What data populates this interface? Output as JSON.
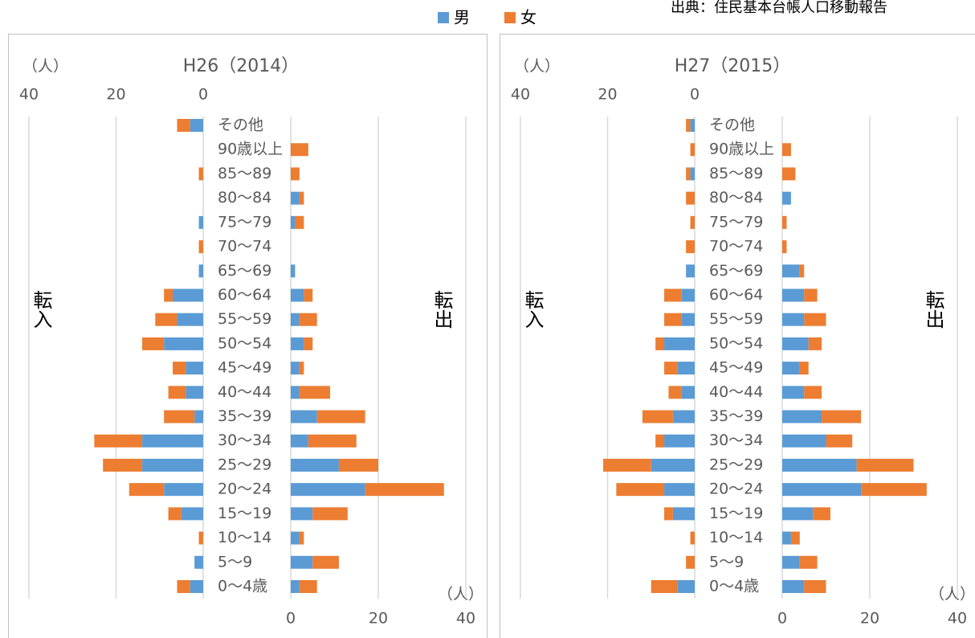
{
  "chart_data": {
    "type": "pyramid",
    "source": "出典：住民基本台帳人口移動報告",
    "legend": [
      {
        "name": "男",
        "color": "#5b9bd5"
      },
      {
        "name": "女",
        "color": "#ed7d31"
      }
    ],
    "charts": [
      {
        "title": "H26（2014）",
        "unit_label": "（人）",
        "in_label": "転入",
        "out_label": "転出",
        "xlim": [
          0,
          40
        ],
        "xticks": [
          0,
          20,
          40
        ],
        "categories": [
          "その他",
          "90歳以上",
          "85～89",
          "80～84",
          "75～79",
          "70～74",
          "65～69",
          "60～64",
          "55～59",
          "50～54",
          "45～49",
          "40～44",
          "35～39",
          "30～34",
          "25～29",
          "20～24",
          "15～19",
          "10～14",
          "5～9",
          "0～4歳"
        ],
        "series": [
          {
            "in": [
              3,
              0,
              0,
              0,
              1,
              0,
              1,
              7,
              6,
              9,
              4,
              4,
              2,
              14,
              14,
              9,
              5,
              0,
              2,
              3
            ],
            "out": [
              0,
              0,
              0,
              2,
              1,
              0,
              1,
              3,
              2,
              3,
              2,
              2,
              6,
              4,
              11,
              17,
              5,
              2,
              5,
              2
            ]
          },
          {
            "in": [
              3,
              0,
              1,
              0,
              0,
              1,
              0,
              2,
              5,
              5,
              3,
              4,
              7,
              11,
              9,
              8,
              3,
              1,
              0,
              3
            ],
            "out": [
              0,
              4,
              2,
              1,
              2,
              0,
              0,
              2,
              4,
              2,
              1,
              7,
              11,
              11,
              9,
              18,
              8,
              1,
              6,
              4
            ]
          }
        ]
      },
      {
        "title": "H27（2015）",
        "unit_label": "（人）",
        "in_label": "転入",
        "out_label": "転出",
        "xlim": [
          0,
          40
        ],
        "xticks": [
          0,
          20,
          40
        ],
        "categories": [
          "その他",
          "90歳以上",
          "85～89",
          "80～84",
          "75～79",
          "70～74",
          "65～69",
          "60～64",
          "55～59",
          "50～54",
          "45～49",
          "40～44",
          "35～39",
          "30～34",
          "25～29",
          "20～24",
          "15～19",
          "10～14",
          "5～9",
          "0～4歳"
        ],
        "series": [
          {
            "in": [
              1,
              0,
              1,
              0,
              0,
              0,
              2,
              3,
              3,
              7,
              4,
              3,
              5,
              7,
              10,
              7,
              5,
              0,
              0,
              4
            ],
            "out": [
              0,
              0,
              0,
              2,
              0,
              0,
              4,
              5,
              5,
              6,
              4,
              5,
              9,
              10,
              17,
              18,
              7,
              2,
              4,
              5
            ]
          },
          {
            "in": [
              1,
              1,
              1,
              2,
              1,
              2,
              0,
              4,
              4,
              2,
              3,
              3,
              7,
              2,
              11,
              11,
              2,
              1,
              2,
              6
            ],
            "out": [
              0,
              2,
              3,
              0,
              1,
              1,
              1,
              3,
              5,
              3,
              2,
              4,
              9,
              6,
              13,
              15,
              4,
              2,
              4,
              5
            ]
          }
        ]
      }
    ]
  }
}
